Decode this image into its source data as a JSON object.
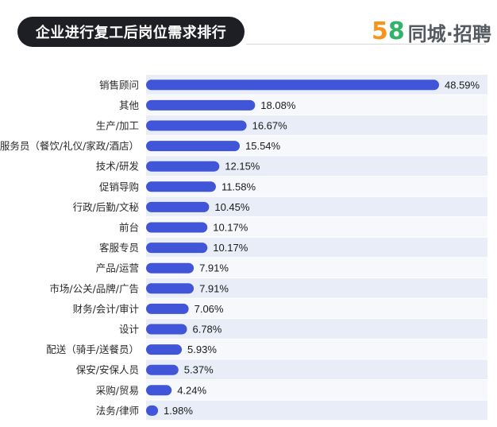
{
  "header": {
    "title": "企业进行复工后岗位需求排行",
    "brand_num_1": "5",
    "brand_num_2": "8",
    "brand_name": "同城·招聘"
  },
  "colors": {
    "bar": "#4055d8",
    "band_even": "#e8edf8",
    "band_odd": "#f6f8fc",
    "title_bg": "#1d1f24",
    "brand_orange": "#f7941d",
    "brand_green": "#31b36b"
  },
  "chart_data": {
    "type": "bar",
    "orientation": "horizontal",
    "title": "企业进行复工后岗位需求排行",
    "categories": [
      "销售顾问",
      "其他",
      "生产/加工",
      "服务员（餐饮/礼仪/家政/酒店）",
      "技术/研发",
      "促销导购",
      "行政/后勤/文秘",
      "前台",
      "客服专员",
      "产品/运营",
      "市场/公关/品牌/广告",
      "财务/会计/审计",
      "设计",
      "配送（骑手/送餐员）",
      "保安/安保人员",
      "采购/贸易",
      "法务/律师"
    ],
    "values": [
      48.59,
      18.08,
      16.67,
      15.54,
      12.15,
      11.58,
      10.45,
      10.17,
      10.17,
      7.91,
      7.91,
      7.06,
      6.78,
      5.93,
      5.37,
      4.24,
      1.98
    ],
    "labels": [
      "48.59%",
      "18.08%",
      "16.67%",
      "15.54%",
      "12.15%",
      "11.58%",
      "10.45%",
      "10.17%",
      "10.17%",
      "7.91%",
      "7.91%",
      "7.06%",
      "6.78%",
      "5.93%",
      "5.37%",
      "4.24%",
      "1.98%"
    ],
    "unit": "%",
    "xlim": [
      0,
      50
    ],
    "grid": false,
    "legend": "none"
  }
}
